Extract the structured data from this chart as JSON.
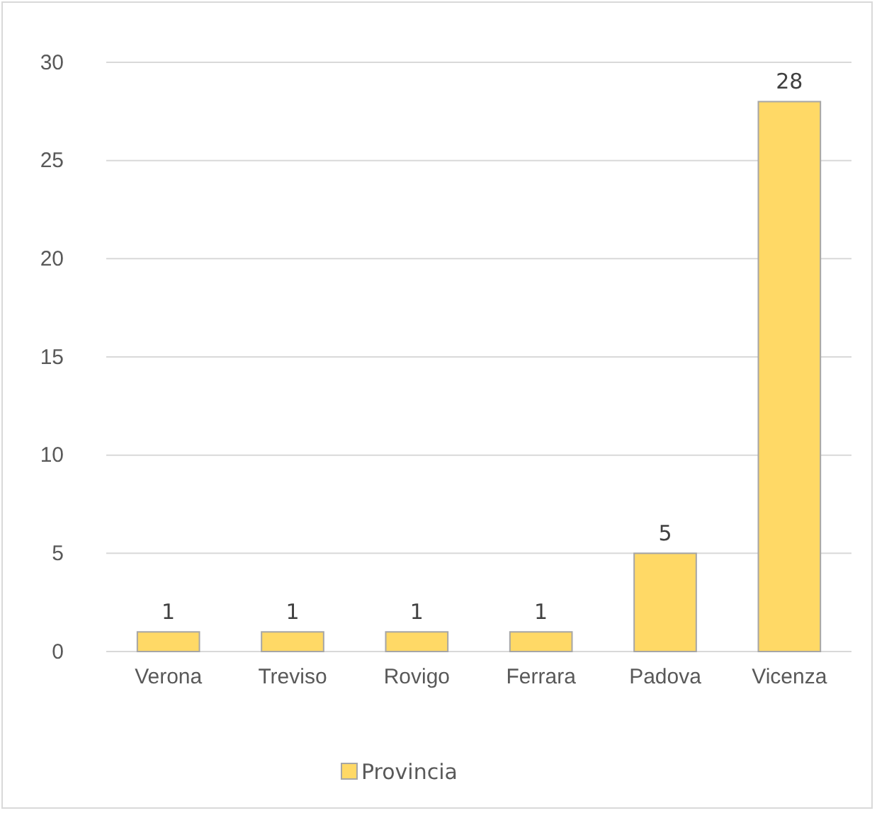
{
  "chart_data": {
    "type": "bar",
    "categories": [
      "Verona",
      "Treviso",
      "Rovigo",
      "Ferrara",
      "Padova",
      "Vicenza"
    ],
    "series": [
      {
        "name": "Provincia",
        "color": "#ffd966",
        "values": [
          1,
          1,
          1,
          1,
          5,
          28
        ]
      }
    ],
    "ylim": [
      0,
      30
    ],
    "yticks": [
      0,
      5,
      10,
      15,
      20,
      25,
      30
    ],
    "grid": "y",
    "legend": "bottom",
    "data_labels": true
  }
}
